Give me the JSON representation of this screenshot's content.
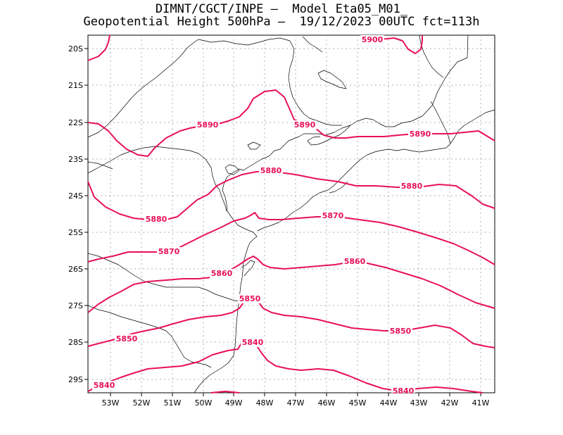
{
  "title": {
    "line1": "DIMNT/CGCT/INPE –  Model Eta05_M01_",
    "line2": "Geopotential Height 500hPa –  19/12/2023 00UTC fct=113h"
  },
  "map": {
    "contour_color": "#e8105a",
    "grid_color": "#b0b0b0",
    "coast_color": "#000000",
    "lon_range": [
      -53.7,
      -40.5
    ],
    "lat_range": [
      -29.4,
      -19.7
    ],
    "x_ticks": [
      "53W",
      "52W",
      "51W",
      "50W",
      "49W",
      "48W",
      "47W",
      "46W",
      "45W",
      "44W",
      "43W",
      "42W",
      "41W"
    ],
    "y_ticks": [
      "20S",
      "21S",
      "22S",
      "23S",
      "24S",
      "25S",
      "26S",
      "27S",
      "28S",
      "29S"
    ],
    "contours": [
      {
        "value": 5900,
        "labels": [
          "5900"
        ]
      },
      {
        "value": 5890,
        "labels": [
          "5890",
          "5890",
          "5890"
        ]
      },
      {
        "value": 5880,
        "labels": [
          "5880",
          "5880",
          "5880"
        ]
      },
      {
        "value": 5870,
        "labels": [
          "5870",
          "5870"
        ]
      },
      {
        "value": 5860,
        "labels": [
          "5860",
          "5860"
        ]
      },
      {
        "value": 5850,
        "labels": [
          "5850",
          "5850",
          "5850"
        ]
      },
      {
        "value": 5840,
        "labels": [
          "5840",
          "5840",
          "5840"
        ]
      }
    ]
  }
}
